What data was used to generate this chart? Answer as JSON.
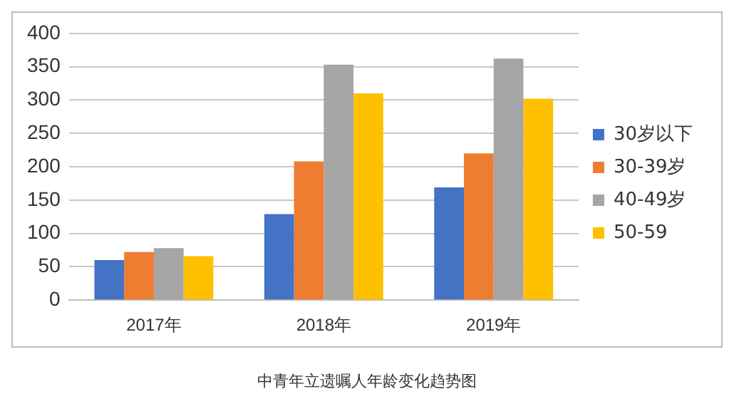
{
  "chart_data": {
    "type": "bar",
    "title": "中青年立遗嘱人年龄变化趋势图",
    "categories": [
      "2017年",
      "2018年",
      "2019年"
    ],
    "series": [
      {
        "name": "30岁以下",
        "color": "#4472c4",
        "values": [
          60,
          129,
          169
        ]
      },
      {
        "name": "30-39岁",
        "color": "#ed7d31",
        "values": [
          72,
          208,
          220
        ]
      },
      {
        "name": "40-49岁",
        "color": "#a5a5a5",
        "values": [
          78,
          353,
          362
        ]
      },
      {
        "name": "50-59",
        "color": "#ffc000",
        "values": [
          66,
          310,
          302
        ]
      }
    ],
    "ylim": [
      0,
      400
    ],
    "yticks": [
      0,
      50,
      100,
      150,
      200,
      250,
      300,
      350,
      400
    ],
    "grid": "y",
    "legend": "right"
  }
}
